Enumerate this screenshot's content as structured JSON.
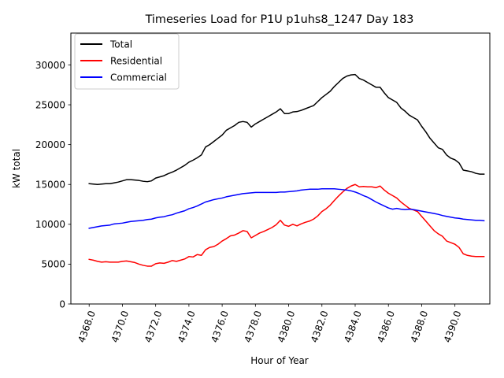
{
  "chart_data": {
    "type": "line",
    "title": "Timeseries Load for P1U p1uhs8_1247  Day 183",
    "xlabel": "Hour of Year",
    "ylabel": "kW total",
    "xlim": [
      4366.9,
      4392.1
    ],
    "ylim": [
      0,
      34000
    ],
    "xticks": [
      4368,
      4370,
      4372,
      4374,
      4376,
      4378,
      4380,
      4382,
      4384,
      4386,
      4388,
      4390
    ],
    "xtick_labels": [
      "4368.0",
      "4370.0",
      "4372.0",
      "4374.0",
      "4376.0",
      "4378.0",
      "4380.0",
      "4382.0",
      "4384.0",
      "4386.0",
      "4388.0",
      "4390.0"
    ],
    "yticks": [
      0,
      5000,
      10000,
      15000,
      20000,
      25000,
      30000
    ],
    "ytick_labels": [
      "0",
      "5000",
      "10000",
      "15000",
      "20000",
      "25000",
      "30000"
    ],
    "legend_position": "top-left",
    "x": [
      4368.0,
      4368.25,
      4368.5,
      4368.75,
      4369.0,
      4369.25,
      4369.5,
      4369.75,
      4370.0,
      4370.25,
      4370.5,
      4370.75,
      4371.0,
      4371.25,
      4371.5,
      4371.75,
      4372.0,
      4372.25,
      4372.5,
      4372.75,
      4373.0,
      4373.25,
      4373.5,
      4373.75,
      4374.0,
      4374.25,
      4374.5,
      4374.75,
      4375.0,
      4375.25,
      4375.5,
      4375.75,
      4376.0,
      4376.25,
      4376.5,
      4376.75,
      4377.0,
      4377.25,
      4377.5,
      4377.75,
      4378.0,
      4378.25,
      4378.5,
      4378.75,
      4379.0,
      4379.25,
      4379.5,
      4379.75,
      4380.0,
      4380.25,
      4380.5,
      4380.75,
      4381.0,
      4381.25,
      4381.5,
      4381.75,
      4382.0,
      4382.25,
      4382.5,
      4382.75,
      4383.0,
      4383.25,
      4383.5,
      4383.75,
      4384.0,
      4384.25,
      4384.5,
      4384.75,
      4385.0,
      4385.25,
      4385.5,
      4385.75,
      4386.0,
      4386.25,
      4386.5,
      4386.75,
      4387.0,
      4387.25,
      4387.5,
      4387.75,
      4388.0,
      4388.25,
      4388.5,
      4388.75,
      4389.0,
      4389.25,
      4389.5,
      4389.75,
      4390.0,
      4390.25,
      4390.5,
      4390.75,
      4391.0,
      4391.25,
      4391.5,
      4391.75
    ],
    "series": [
      {
        "name": "Total",
        "color": "#000000",
        "values": [
          15100,
          15050,
          15000,
          15050,
          15100,
          15100,
          15200,
          15300,
          15450,
          15600,
          15600,
          15550,
          15500,
          15400,
          15350,
          15450,
          15800,
          15950,
          16100,
          16350,
          16550,
          16800,
          17100,
          17400,
          17800,
          18050,
          18350,
          18700,
          19700,
          20000,
          20400,
          20800,
          21200,
          21800,
          22100,
          22400,
          22800,
          22900,
          22800,
          22200,
          22600,
          22900,
          23200,
          23500,
          23800,
          24100,
          24500,
          23900,
          23900,
          24100,
          24150,
          24300,
          24500,
          24700,
          24900,
          25400,
          25900,
          26300,
          26700,
          27300,
          27800,
          28300,
          28600,
          28750,
          28800,
          28300,
          28100,
          27800,
          27500,
          27200,
          27200,
          26500,
          25900,
          25600,
          25300,
          24600,
          24200,
          23700,
          23400,
          23100,
          22300,
          21600,
          20800,
          20200,
          19600,
          19400,
          18700,
          18300,
          18100,
          17700,
          16800,
          16700,
          16600,
          16400,
          16300,
          16300
        ]
      },
      {
        "name": "Residential",
        "color": "#ff0000",
        "values": [
          5600,
          5500,
          5350,
          5250,
          5300,
          5250,
          5250,
          5250,
          5350,
          5400,
          5300,
          5200,
          5000,
          4850,
          4750,
          4750,
          5050,
          5150,
          5100,
          5250,
          5450,
          5350,
          5500,
          5650,
          5950,
          5900,
          6200,
          6100,
          6800,
          7100,
          7200,
          7500,
          7900,
          8200,
          8550,
          8650,
          8900,
          9200,
          9100,
          8300,
          8600,
          8900,
          9100,
          9350,
          9600,
          9950,
          10500,
          9900,
          9750,
          10000,
          9800,
          10050,
          10250,
          10400,
          10650,
          11050,
          11600,
          11950,
          12400,
          13000,
          13550,
          14050,
          14500,
          14800,
          15000,
          14700,
          14750,
          14700,
          14700,
          14600,
          14800,
          14300,
          13900,
          13600,
          13300,
          12800,
          12400,
          12000,
          11800,
          11600,
          11000,
          10400,
          9800,
          9200,
          8800,
          8500,
          7900,
          7700,
          7500,
          7100,
          6300,
          6100,
          6000,
          5950,
          5950,
          5950
        ]
      },
      {
        "name": "Commercial",
        "color": "#0000ff",
        "values": [
          9500,
          9600,
          9700,
          9800,
          9850,
          9900,
          10050,
          10100,
          10150,
          10250,
          10350,
          10400,
          10450,
          10500,
          10600,
          10650,
          10800,
          10900,
          10950,
          11100,
          11200,
          11400,
          11550,
          11700,
          11950,
          12100,
          12300,
          12550,
          12800,
          12950,
          13100,
          13200,
          13300,
          13450,
          13550,
          13650,
          13750,
          13850,
          13900,
          13950,
          14000,
          14000,
          14000,
          14000,
          14000,
          14000,
          14050,
          14050,
          14100,
          14150,
          14200,
          14300,
          14350,
          14400,
          14400,
          14400,
          14450,
          14450,
          14450,
          14450,
          14400,
          14350,
          14300,
          14200,
          14050,
          13850,
          13600,
          13400,
          13100,
          12800,
          12550,
          12300,
          12050,
          11900,
          12000,
          11900,
          11850,
          11900,
          11850,
          11750,
          11650,
          11550,
          11450,
          11350,
          11250,
          11100,
          11000,
          10900,
          10800,
          10750,
          10650,
          10600,
          10550,
          10500,
          10500,
          10450
        ]
      }
    ]
  }
}
